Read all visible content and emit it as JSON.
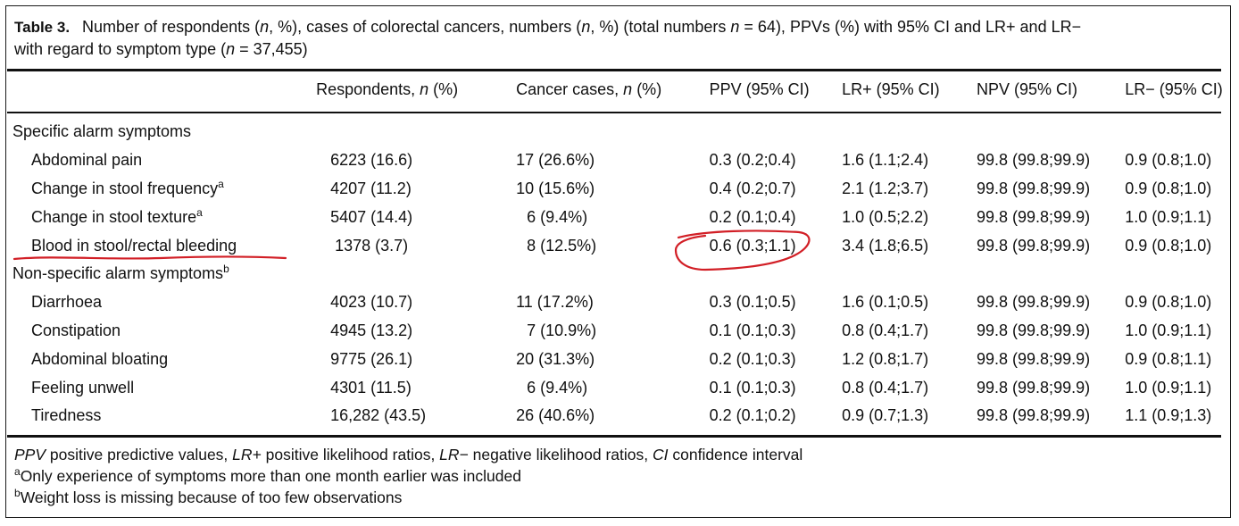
{
  "caption": {
    "label": "Table 3.",
    "text_line1_a": "Number of respondents (",
    "text_line1_n1": "n",
    "text_line1_b": ", %), cases of colorectal cancers, numbers (",
    "text_line1_n2": "n",
    "text_line1_c": ", %) (total numbers ",
    "text_line1_n3": "n",
    "text_line1_d": " = 64), PPVs (%) with 95% CI and LR+ and LR−",
    "text_line2_a": "with regard to symptom type (",
    "text_line2_n": "n",
    "text_line2_b": " = 37,455)"
  },
  "table": {
    "headers": {
      "col1_a": "Respondents, ",
      "col1_n": "n",
      "col1_b": " (%)",
      "col2_a": "Cancer cases, ",
      "col2_n": "n",
      "col2_b": " (%)",
      "col3": "PPV (95% CI)",
      "col4": "LR+ (95% CI)",
      "col5": "NPV (95% CI)",
      "col6": "LR− (95% CI)"
    },
    "group1": {
      "label": "Specific alarm symptoms",
      "rows": [
        {
          "name": "Abdominal pain",
          "sup": "",
          "respondents": "6223 (16.6)",
          "cases": "17 (26.6%)",
          "ppv": "0.3 (0.2;0.4)",
          "lrp": "1.6 (1.1;2.4)",
          "npv": "99.8 (99.8;99.9)",
          "lrn": "0.9 (0.8;1.0)"
        },
        {
          "name": "Change in stool frequency",
          "sup": "a",
          "respondents": "4207 (11.2)",
          "cases": "10 (15.6%)",
          "ppv": "0.4 (0.2;0.7)",
          "lrp": "2.1 (1.2;3.7)",
          "npv": "99.8 (99.8;99.9)",
          "lrn": "0.9 (0.8;1.0)"
        },
        {
          "name": "Change in stool texture",
          "sup": "a",
          "respondents": "5407 (14.4)",
          "cases": "6 (9.4%)",
          "ppv": "0.2 (0.1;0.4)",
          "lrp": "1.0 (0.5;2.2)",
          "npv": "99.8 (99.8;99.9)",
          "lrn": "1.0 (0.9;1.1)"
        },
        {
          "name": "Blood in stool/rectal bleeding",
          "sup": "",
          "respondents": "1378 (3.7)",
          "cases": "8 (12.5%)",
          "ppv": "0.6 (0.3;1.1)",
          "lrp": "3.4 (1.8;6.5)",
          "npv": "99.8 (99.8;99.9)",
          "lrn": "0.9 (0.8;1.0)"
        }
      ]
    },
    "group2": {
      "label": "Non-specific alarm symptoms",
      "sup": "b",
      "rows": [
        {
          "name": "Diarrhoea",
          "sup": "",
          "respondents": "4023 (10.7)",
          "cases": "11 (17.2%)",
          "ppv": "0.3 (0.1;0.5)",
          "lrp": "1.6 (0.1;0.5)",
          "npv": "99.8 (99.8;99.9)",
          "lrn": "0.9 (0.8;1.0)"
        },
        {
          "name": "Constipation",
          "sup": "",
          "respondents": "4945 (13.2)",
          "cases": "7 (10.9%)",
          "ppv": "0.1 (0.1;0.3)",
          "lrp": "0.8 (0.4;1.7)",
          "npv": "99.8 (99.8;99.9)",
          "lrn": "1.0 (0.9;1.1)"
        },
        {
          "name": "Abdominal bloating",
          "sup": "",
          "respondents": "9775 (26.1)",
          "cases": "20 (31.3%)",
          "ppv": "0.2 (0.1;0.3)",
          "lrp": "1.2 (0.8;1.7)",
          "npv": "99.8 (99.8;99.9)",
          "lrn": "0.9 (0.8;1.1)"
        },
        {
          "name": "Feeling unwell",
          "sup": "",
          "respondents": "4301 (11.5)",
          "cases": "6 (9.4%)",
          "ppv": "0.1 (0.1;0.3)",
          "lrp": "0.8 (0.4;1.7)",
          "npv": "99.8 (99.8;99.9)",
          "lrn": "1.0 (0.9;1.1)"
        },
        {
          "name": "Tiredness",
          "sup": "",
          "respondents": "16,282 (43.5)",
          "cases": "26 (40.6%)",
          "ppv": "0.2 (0.1;0.2)",
          "lrp": "0.9 (0.7;1.3)",
          "npv": "99.8 (99.8;99.9)",
          "lrn": "1.1 (0.9;1.3)"
        }
      ]
    }
  },
  "footnotes": {
    "abbrev_ppv": "PPV",
    "abbrev_ppv_text": " positive predictive values, ",
    "abbrev_lrp": "LR+",
    "abbrev_lrp_text": " positive likelihood ratios, ",
    "abbrev_lrn": "LR−",
    "abbrev_lrn_text": " negative likelihood ratios, ",
    "abbrev_ci": "CI",
    "abbrev_ci_text": " confidence interval",
    "note_a_mark": "a",
    "note_a": "Only experience of symptoms more than one month earlier was included",
    "note_b_mark": "b",
    "note_b": "Weight loss is missing because of too few observations"
  },
  "annotations": {
    "color": "#d21f26"
  }
}
